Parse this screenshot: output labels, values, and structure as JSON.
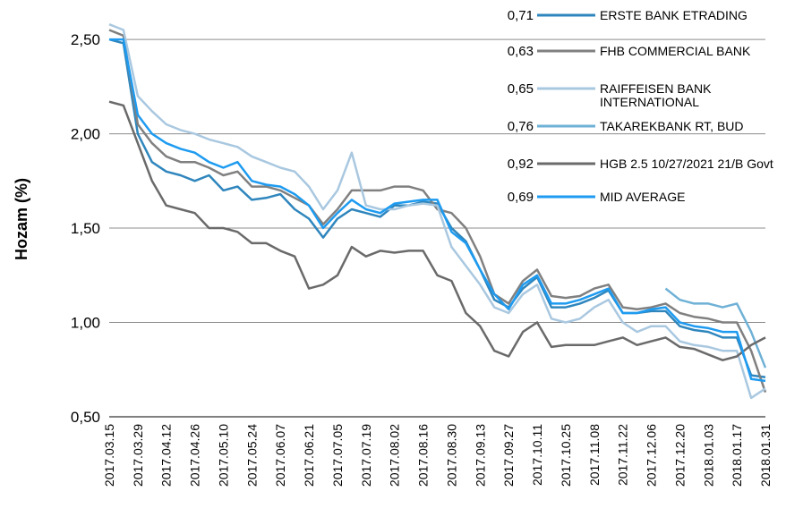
{
  "chart_data": {
    "type": "line",
    "y_label": "Hozam (%)",
    "categories": [
      "2017.03.15",
      null,
      "2017.03.29",
      null,
      "2017.04.12",
      null,
      "2017.04.26",
      null,
      "2017.05.10",
      null,
      "2017.05.24",
      null,
      "2017.06.07",
      null,
      "2017.06.21",
      null,
      "2017.07.05",
      null,
      "2017.07.19",
      null,
      "2017.08.02",
      null,
      "2017.08.16",
      null,
      "2017.08.30",
      null,
      "2017.09.13",
      null,
      "2017.09.27",
      null,
      "2017.10.11",
      null,
      "2017.10.25",
      null,
      "2017.11.08",
      null,
      "2017.11.22",
      null,
      "2017.12.06",
      null,
      "2017.12.20",
      null,
      "2018.01.03",
      null,
      "2018.01.17",
      null,
      "2018.01.31"
    ],
    "ylim": [
      0.5,
      2.6
    ],
    "yticks": [
      {
        "value": 0.5,
        "label": "0,50"
      },
      {
        "value": 1.0,
        "label": "1,00"
      },
      {
        "value": 1.5,
        "label": "1,50"
      },
      {
        "value": 2.0,
        "label": "2,00"
      },
      {
        "value": 2.5,
        "label": "2,50"
      }
    ],
    "grid": true,
    "legend": "top-right",
    "series": [
      {
        "name": "ERSTE BANK ETRADING",
        "color": "#2f86bd",
        "legend_value": {
          "value": 0.71,
          "label": "0,71"
        },
        "values": [
          2.5,
          2.48,
          2.0,
          1.85,
          1.8,
          1.78,
          1.75,
          1.78,
          1.7,
          1.72,
          1.65,
          1.66,
          1.68,
          1.6,
          1.55,
          1.45,
          1.55,
          1.6,
          1.58,
          1.56,
          1.62,
          1.62,
          1.64,
          1.63,
          1.5,
          1.43,
          1.28,
          1.12,
          1.08,
          1.18,
          1.24,
          1.08,
          1.08,
          1.1,
          1.13,
          1.17,
          1.05,
          1.05,
          1.06,
          1.06,
          0.98,
          0.96,
          0.95,
          0.92,
          0.92,
          0.72,
          0.71
        ]
      },
      {
        "name": "FHB COMMERCIAL BANK",
        "color": "#808080",
        "legend_value": {
          "value": 0.63,
          "label": "0,63"
        },
        "values": [
          2.55,
          2.52,
          2.05,
          1.95,
          1.88,
          1.85,
          1.85,
          1.82,
          1.78,
          1.8,
          1.72,
          1.72,
          1.7,
          1.66,
          1.62,
          1.52,
          1.6,
          1.7,
          1.7,
          1.7,
          1.72,
          1.72,
          1.7,
          1.6,
          1.58,
          1.5,
          1.35,
          1.15,
          1.1,
          1.22,
          1.28,
          1.14,
          1.13,
          1.14,
          1.18,
          1.2,
          1.08,
          1.07,
          1.08,
          1.1,
          1.05,
          1.03,
          1.02,
          1.0,
          1.0,
          0.85,
          0.63
        ]
      },
      {
        "name": "RAIFFEISEN BANK INTERNATIONAL",
        "color": "#a9c8e0",
        "legend_value": {
          "value": 0.65,
          "label": "0,65"
        },
        "values": [
          2.58,
          2.55,
          2.2,
          2.12,
          2.05,
          2.02,
          2.0,
          1.97,
          1.95,
          1.93,
          1.88,
          1.85,
          1.82,
          1.8,
          1.72,
          1.6,
          1.7,
          1.9,
          1.62,
          1.6,
          1.6,
          1.62,
          1.63,
          1.62,
          1.4,
          1.3,
          1.2,
          1.08,
          1.05,
          1.15,
          1.2,
          1.02,
          1.0,
          1.02,
          1.08,
          1.12,
          1.0,
          0.95,
          0.98,
          0.98,
          0.9,
          0.88,
          0.87,
          0.85,
          0.85,
          0.6,
          0.65
        ]
      },
      {
        "name": "TAKAREKBANK RT, BUD",
        "color": "#6fb1d6",
        "legend_value": {
          "value": 0.76,
          "label": "0,76"
        },
        "values": [
          null,
          null,
          null,
          null,
          null,
          null,
          null,
          null,
          null,
          null,
          null,
          null,
          null,
          null,
          null,
          null,
          null,
          null,
          null,
          null,
          null,
          null,
          null,
          null,
          null,
          null,
          null,
          null,
          null,
          null,
          null,
          null,
          null,
          null,
          null,
          null,
          null,
          null,
          null,
          1.18,
          1.12,
          1.1,
          1.1,
          1.08,
          1.1,
          0.95,
          0.76
        ]
      },
      {
        "name": "HGB 2.5 10/27/2021 21/B Govt",
        "color": "#6a6a6a",
        "legend_value": {
          "value": 0.92,
          "label": "0,92"
        },
        "values": [
          2.17,
          2.15,
          1.95,
          1.75,
          1.62,
          1.6,
          1.58,
          1.5,
          1.5,
          1.48,
          1.42,
          1.42,
          1.38,
          1.35,
          1.18,
          1.2,
          1.25,
          1.4,
          1.35,
          1.38,
          1.37,
          1.38,
          1.38,
          1.25,
          1.22,
          1.05,
          0.98,
          0.85,
          0.82,
          0.95,
          1.0,
          0.87,
          0.88,
          0.88,
          0.88,
          0.9,
          0.92,
          0.88,
          0.9,
          0.92,
          0.87,
          0.86,
          0.83,
          0.8,
          0.82,
          0.88,
          0.92
        ]
      },
      {
        "name": "MID AVERAGE",
        "color": "#1e9bf0",
        "legend_value": {
          "value": 0.69,
          "label": "0,69"
        },
        "values": [
          2.5,
          2.5,
          2.1,
          2.0,
          1.95,
          1.92,
          1.9,
          1.85,
          1.82,
          1.85,
          1.75,
          1.73,
          1.72,
          1.68,
          1.62,
          1.5,
          1.58,
          1.65,
          1.6,
          1.58,
          1.63,
          1.64,
          1.65,
          1.65,
          1.48,
          1.42,
          1.28,
          1.15,
          1.07,
          1.2,
          1.25,
          1.1,
          1.1,
          1.12,
          1.15,
          1.18,
          1.05,
          1.05,
          1.07,
          1.08,
          1.0,
          0.98,
          0.97,
          0.95,
          0.95,
          0.7,
          0.69
        ]
      }
    ]
  }
}
